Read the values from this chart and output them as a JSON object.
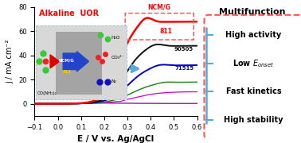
{
  "xlabel": "E / V vs. Ag/AgCl",
  "ylabel": "j / mA cm⁻²",
  "xlim": [
    -0.1,
    0.6
  ],
  "ylim": [
    -10,
    80
  ],
  "yticks": [
    0,
    20,
    40,
    60,
    80
  ],
  "xticks": [
    -0.1,
    0.0,
    0.1,
    0.2,
    0.3,
    0.4,
    0.5,
    0.6
  ],
  "alkaline_uor_text": "Alkaline  UOR",
  "ncmg_label": "NCM/G",
  "curve_811_label": "811",
  "curve_90505_label": "90505",
  "curve_71515_label": "71515",
  "multifunction_title": "Multifunction",
  "items": [
    "High activity",
    "Low $E_{onset}$",
    "Fast kinetics",
    "High stability"
  ],
  "inset_labels": [
    "CO(NH₂)₂",
    "H₂O",
    "CO₃²⁻",
    "N₂",
    "NCM/G\n811"
  ],
  "colors": {
    "red_curve": "#ff0000",
    "black_curve": "#111111",
    "blue_curve": "#0000cc",
    "green_curve": "#228B22",
    "purple_curve": "#880099",
    "magenta_curve": "#cc00cc",
    "cyan_arrow": "#55aadd",
    "box_border": "#ff5555",
    "inset_border": "#88bbdd",
    "bracket_color": "#55aadd",
    "rocket_blue": "#2244cc",
    "rocket_red": "#dd0000",
    "dot_green": "#33cc33",
    "dot_red": "#ee2222",
    "dot_blue": "#1111bb"
  },
  "background": "#ffffff"
}
